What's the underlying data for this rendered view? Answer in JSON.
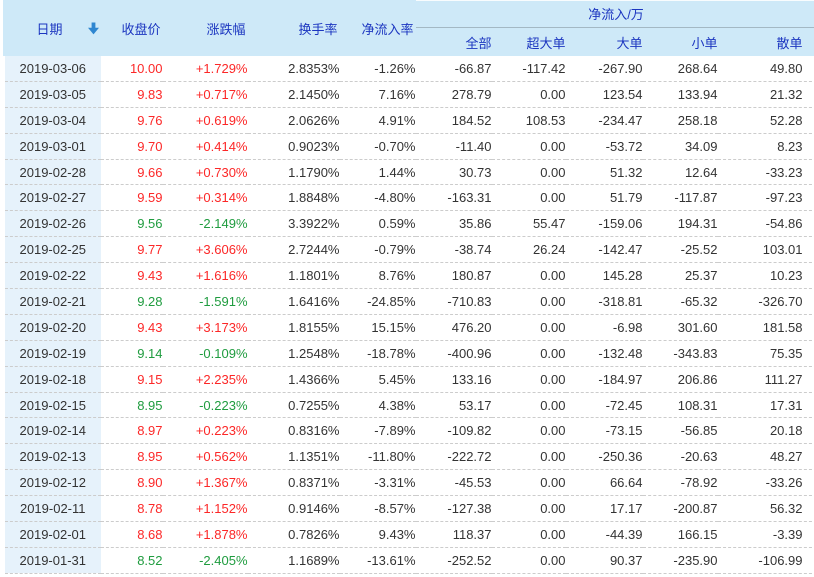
{
  "table": {
    "sort_column": "日期",
    "sort_direction": "descending",
    "group_header": "净流入/万",
    "columns": [
      {
        "key": "date",
        "label": "日期"
      },
      {
        "key": "close",
        "label": "收盘价"
      },
      {
        "key": "change",
        "label": "涨跌幅"
      },
      {
        "key": "turnover",
        "label": "换手率"
      },
      {
        "key": "inflow_rate",
        "label": "净流入率"
      },
      {
        "key": "all",
        "label": "全部"
      },
      {
        "key": "xl",
        "label": "超大单"
      },
      {
        "key": "large",
        "label": "大单"
      },
      {
        "key": "small",
        "label": "小单"
      },
      {
        "key": "retail",
        "label": "散单"
      }
    ],
    "rows": [
      {
        "date": "2019-03-06",
        "close": "10.00",
        "change": "+1.729%",
        "turnover": "2.8353%",
        "inflow_rate": "-1.26%",
        "all": "-66.87",
        "xl": "-117.42",
        "large": "-267.90",
        "small": "268.64",
        "retail": "49.80",
        "trend": "up"
      },
      {
        "date": "2019-03-05",
        "close": "9.83",
        "change": "+0.717%",
        "turnover": "2.1450%",
        "inflow_rate": "7.16%",
        "all": "278.79",
        "xl": "0.00",
        "large": "123.54",
        "small": "133.94",
        "retail": "21.32",
        "trend": "up"
      },
      {
        "date": "2019-03-04",
        "close": "9.76",
        "change": "+0.619%",
        "turnover": "2.0626%",
        "inflow_rate": "4.91%",
        "all": "184.52",
        "xl": "108.53",
        "large": "-234.47",
        "small": "258.18",
        "retail": "52.28",
        "trend": "up"
      },
      {
        "date": "2019-03-01",
        "close": "9.70",
        "change": "+0.414%",
        "turnover": "0.9023%",
        "inflow_rate": "-0.70%",
        "all": "-11.40",
        "xl": "0.00",
        "large": "-53.72",
        "small": "34.09",
        "retail": "8.23",
        "trend": "up"
      },
      {
        "date": "2019-02-28",
        "close": "9.66",
        "change": "+0.730%",
        "turnover": "1.1790%",
        "inflow_rate": "1.44%",
        "all": "30.73",
        "xl": "0.00",
        "large": "51.32",
        "small": "12.64",
        "retail": "-33.23",
        "trend": "up"
      },
      {
        "date": "2019-02-27",
        "close": "9.59",
        "change": "+0.314%",
        "turnover": "1.8848%",
        "inflow_rate": "-4.80%",
        "all": "-163.31",
        "xl": "0.00",
        "large": "51.79",
        "small": "-117.87",
        "retail": "-97.23",
        "trend": "up"
      },
      {
        "date": "2019-02-26",
        "close": "9.56",
        "change": "-2.149%",
        "turnover": "3.3922%",
        "inflow_rate": "0.59%",
        "all": "35.86",
        "xl": "55.47",
        "large": "-159.06",
        "small": "194.31",
        "retail": "-54.86",
        "trend": "down"
      },
      {
        "date": "2019-02-25",
        "close": "9.77",
        "change": "+3.606%",
        "turnover": "2.7244%",
        "inflow_rate": "-0.79%",
        "all": "-38.74",
        "xl": "26.24",
        "large": "-142.47",
        "small": "-25.52",
        "retail": "103.01",
        "trend": "up"
      },
      {
        "date": "2019-02-22",
        "close": "9.43",
        "change": "+1.616%",
        "turnover": "1.1801%",
        "inflow_rate": "8.76%",
        "all": "180.87",
        "xl": "0.00",
        "large": "145.28",
        "small": "25.37",
        "retail": "10.23",
        "trend": "up"
      },
      {
        "date": "2019-02-21",
        "close": "9.28",
        "change": "-1.591%",
        "turnover": "1.6416%",
        "inflow_rate": "-24.85%",
        "all": "-710.83",
        "xl": "0.00",
        "large": "-318.81",
        "small": "-65.32",
        "retail": "-326.70",
        "trend": "down"
      },
      {
        "date": "2019-02-20",
        "close": "9.43",
        "change": "+3.173%",
        "turnover": "1.8155%",
        "inflow_rate": "15.15%",
        "all": "476.20",
        "xl": "0.00",
        "large": "-6.98",
        "small": "301.60",
        "retail": "181.58",
        "trend": "up"
      },
      {
        "date": "2019-02-19",
        "close": "9.14",
        "change": "-0.109%",
        "turnover": "1.2548%",
        "inflow_rate": "-18.78%",
        "all": "-400.96",
        "xl": "0.00",
        "large": "-132.48",
        "small": "-343.83",
        "retail": "75.35",
        "trend": "down"
      },
      {
        "date": "2019-02-18",
        "close": "9.15",
        "change": "+2.235%",
        "turnover": "1.4366%",
        "inflow_rate": "5.45%",
        "all": "133.16",
        "xl": "0.00",
        "large": "-184.97",
        "small": "206.86",
        "retail": "111.27",
        "trend": "up"
      },
      {
        "date": "2019-02-15",
        "close": "8.95",
        "change": "-0.223%",
        "turnover": "0.7255%",
        "inflow_rate": "4.38%",
        "all": "53.17",
        "xl": "0.00",
        "large": "-72.45",
        "small": "108.31",
        "retail": "17.31",
        "trend": "down"
      },
      {
        "date": "2019-02-14",
        "close": "8.97",
        "change": "+0.223%",
        "turnover": "0.8316%",
        "inflow_rate": "-7.89%",
        "all": "-109.82",
        "xl": "0.00",
        "large": "-73.15",
        "small": "-56.85",
        "retail": "20.18",
        "trend": "up"
      },
      {
        "date": "2019-02-13",
        "close": "8.95",
        "change": "+0.562%",
        "turnover": "1.1351%",
        "inflow_rate": "-11.80%",
        "all": "-222.72",
        "xl": "0.00",
        "large": "-250.36",
        "small": "-20.63",
        "retail": "48.27",
        "trend": "up"
      },
      {
        "date": "2019-02-12",
        "close": "8.90",
        "change": "+1.367%",
        "turnover": "0.8371%",
        "inflow_rate": "-3.31%",
        "all": "-45.53",
        "xl": "0.00",
        "large": "66.64",
        "small": "-78.92",
        "retail": "-33.26",
        "trend": "up"
      },
      {
        "date": "2019-02-11",
        "close": "8.78",
        "change": "+1.152%",
        "turnover": "0.9146%",
        "inflow_rate": "-8.57%",
        "all": "-127.38",
        "xl": "0.00",
        "large": "17.17",
        "small": "-200.87",
        "retail": "56.32",
        "trend": "up"
      },
      {
        "date": "2019-02-01",
        "close": "8.68",
        "change": "+1.878%",
        "turnover": "0.7826%",
        "inflow_rate": "9.43%",
        "all": "118.37",
        "xl": "0.00",
        "large": "-44.39",
        "small": "166.15",
        "retail": "-3.39",
        "trend": "up"
      },
      {
        "date": "2019-01-31",
        "close": "8.52",
        "change": "-2.405%",
        "turnover": "1.1689%",
        "inflow_rate": "-13.61%",
        "all": "-252.52",
        "xl": "0.00",
        "large": "90.37",
        "small": "-235.90",
        "retail": "-106.99",
        "trend": "down"
      }
    ]
  },
  "colors": {
    "up": "#fc2727",
    "down": "#1f9c3f",
    "header_bg": "#cee9f8",
    "header_text": "#1c36c0",
    "date_column_bg": "#e6f2fb",
    "sort_arrow": "#2e86d0"
  }
}
